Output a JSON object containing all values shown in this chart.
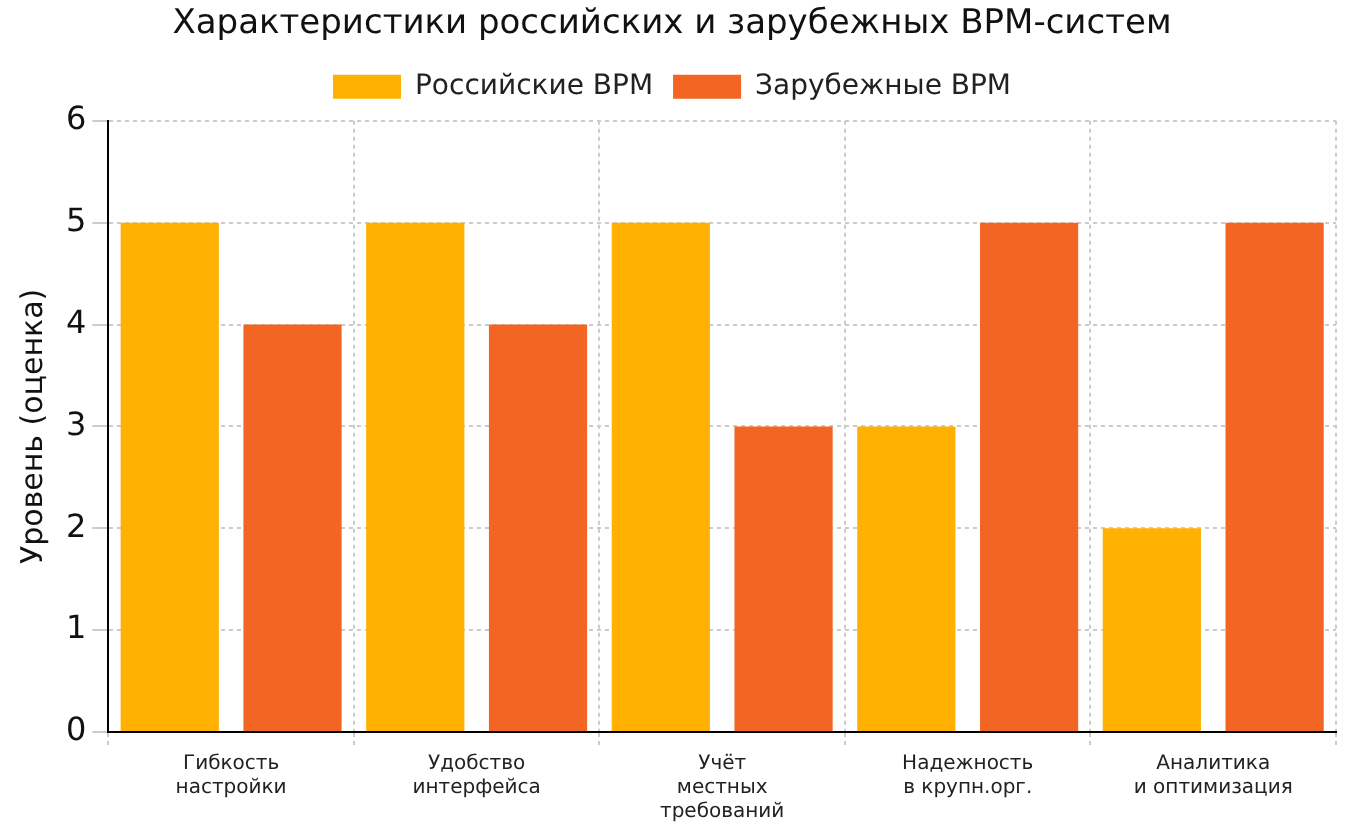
{
  "chart_data": {
    "type": "bar",
    "title": "Характеристики российских и зарубежных BPM-систем",
    "ylabel": "Уровень (оценка)",
    "categories": [
      "Гибкость\nнастройки",
      "Удобство\nинтерфейса",
      "Учёт\nместных\nтребований",
      "Надежность\nв крупн.орг.",
      "Аналитика\nи оптимизация"
    ],
    "series": [
      {
        "name": "Российские BPM",
        "color": "#ffb000",
        "values": [
          5,
          5,
          5,
          3,
          2
        ]
      },
      {
        "name": "Зарубежные BPM",
        "color": "#f26522",
        "values": [
          4,
          4,
          3,
          5,
          5
        ]
      }
    ],
    "ylim": [
      0,
      6
    ],
    "yticks": [
      0,
      1,
      2,
      3,
      4,
      5,
      6
    ],
    "grid": true,
    "legend": "top"
  }
}
